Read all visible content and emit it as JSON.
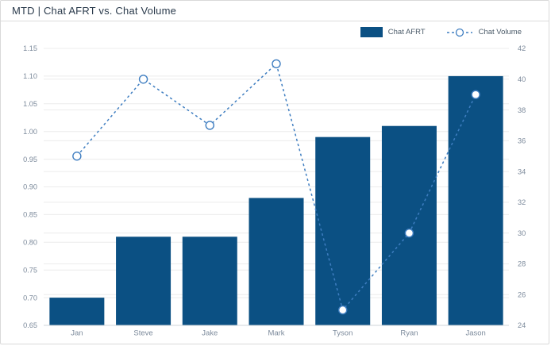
{
  "header": {
    "title": "MTD | Chat AFRT vs. Chat Volume"
  },
  "colors": {
    "bar": "#0b5083",
    "line": "#3f7ec1",
    "marker_fill": "#ffffff",
    "grid": "#ececec",
    "axis_line": "#cfd4d9",
    "axis_text": "#7d8b9c",
    "title_text": "#2b3b4c",
    "legend_text": "#4a5a68",
    "card_border": "#d9d9d9"
  },
  "chart_data": {
    "type": "combo-bar-line-dual-axis",
    "title": "MTD | Chat AFRT vs. Chat Volume",
    "categories": [
      "Jan",
      "Steve",
      "Jake",
      "Mark",
      "Tyson",
      "Ryan",
      "Jason"
    ],
    "series": [
      {
        "name": "Chat AFRT",
        "type": "bar",
        "axis": "left",
        "values": [
          0.7,
          0.81,
          0.81,
          0.88,
          0.99,
          1.01,
          1.1
        ]
      },
      {
        "name": "Chat Volume",
        "type": "line",
        "style": "dashed",
        "marker": "open-circle",
        "axis": "right",
        "values": [
          35,
          40,
          37,
          41,
          25,
          30,
          39
        ]
      }
    ],
    "left_axis": {
      "min": 0.65,
      "max": 1.15,
      "step": 0.05,
      "tick_labels": [
        "1.15",
        "1.10",
        "1.05",
        "1.00",
        "0.95",
        "0.90",
        "0.85",
        "0.80",
        "0.75",
        "0.70",
        "0.65"
      ]
    },
    "right_axis": {
      "min": 24,
      "max": 42,
      "step": 2,
      "tick_labels": [
        "42",
        "40",
        "38",
        "36",
        "34",
        "32",
        "30",
        "28",
        "26",
        "24"
      ]
    },
    "grid": true,
    "legend_position": "top-right"
  }
}
